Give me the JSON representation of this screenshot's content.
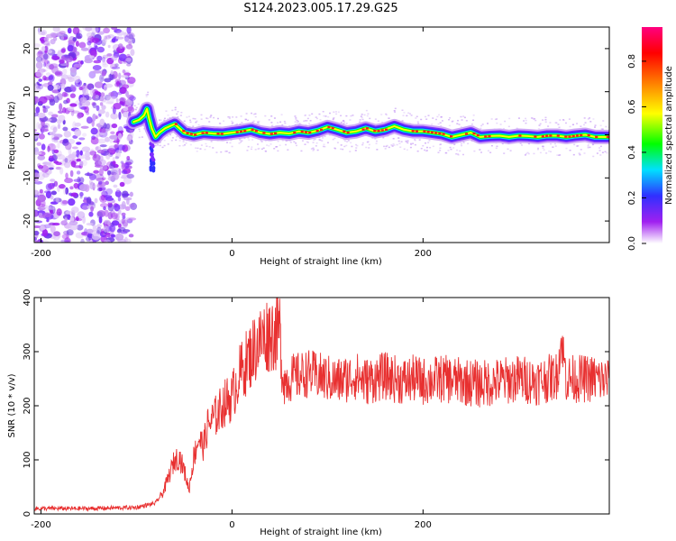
{
  "figure": {
    "title": "S124.2023.005.17.29.G25"
  },
  "chart_data": [
    {
      "type": "heatmap",
      "xlabel": "Height of straight line (km)",
      "ylabel": "Frequency (Hz)",
      "xlim": [
        -207,
        395
      ],
      "ylim": [
        -25,
        25
      ],
      "x_ticks": [
        -200,
        0,
        200
      ],
      "y_ticks": [
        -20,
        -10,
        0,
        10,
        20
      ],
      "noise_region_x": [
        -207,
        -103
      ],
      "ridge": {
        "x": [
          -103,
          -97,
          -92,
          -89,
          -87,
          -84,
          -80,
          -76,
          -70,
          -60,
          -50,
          -40,
          -30,
          -20,
          -10,
          0,
          10,
          20,
          30,
          40,
          50,
          60,
          70,
          80,
          90,
          100,
          110,
          120,
          130,
          140,
          150,
          160,
          170,
          180,
          190,
          200,
          210,
          220,
          230,
          240,
          250,
          260,
          270,
          280,
          290,
          300,
          310,
          320,
          330,
          340,
          350,
          360,
          370,
          380,
          395
        ],
        "frequency": [
          3,
          3.5,
          4.5,
          6,
          4,
          1.5,
          -0.5,
          0.5,
          1.5,
          2.5,
          0.5,
          0,
          0.5,
          0.3,
          0.2,
          0.5,
          0.8,
          1.2,
          0.5,
          0.2,
          0.5,
          0.3,
          0.8,
          0.5,
          1,
          1.8,
          1.2,
          0.5,
          0.8,
          1.5,
          0.8,
          1.2,
          2,
          1.2,
          0.8,
          0.8,
          0.5,
          0.2,
          -0.5,
          0,
          0.5,
          -0.5,
          -0.3,
          -0.2,
          -0.5,
          -0.2,
          -0.3,
          -0.5,
          -0.2,
          -0.2,
          -0.5,
          -0.2,
          0,
          -0.5,
          -0.5
        ]
      },
      "colorbar": {
        "label": "Normalized spectral amplitude",
        "range": [
          0,
          0.95
        ],
        "ticks": [
          0.0,
          0.2,
          0.4,
          0.6,
          0.8
        ],
        "tick_labels": [
          "0.0",
          "0.2",
          "0.4",
          "0.6",
          "0.8"
        ],
        "colormap": [
          "#ffffff",
          "#a020f0",
          "#3030ff",
          "#00e0ff",
          "#00ff00",
          "#ffff00",
          "#ff8000",
          "#ff0000",
          "#ff0080"
        ]
      },
      "grid": false
    },
    {
      "type": "line",
      "xlabel": "Height of straight line (km)",
      "ylabel": "SNR (10 * v/v)",
      "xlim": [
        -207,
        395
      ],
      "ylim": [
        0,
        400
      ],
      "x_ticks": [
        -200,
        0,
        200
      ],
      "y_ticks": [
        0,
        100,
        200,
        300,
        400
      ],
      "color": "#e83030",
      "series": [
        {
          "x": [
            -207,
            -150,
            -100,
            -80,
            -72,
            -65,
            -60,
            -55,
            -50,
            -45,
            -40,
            -35,
            -30,
            -25,
            -20,
            -15,
            -10,
            -5,
            0,
            5,
            10,
            15,
            20,
            25,
            30,
            35,
            40,
            45,
            50,
            52,
            55,
            60,
            70,
            80,
            90,
            100,
            110,
            120,
            130,
            140,
            150,
            160,
            170,
            180,
            190,
            200,
            220,
            240,
            260,
            280,
            300,
            320,
            340,
            345,
            350,
            360,
            380,
            395
          ],
          "values": [
            10,
            10,
            12,
            20,
            40,
            75,
            100,
            105,
            80,
            45,
            105,
            140,
            125,
            165,
            175,
            185,
            200,
            210,
            215,
            245,
            265,
            280,
            295,
            310,
            320,
            330,
            335,
            335,
            340,
            270,
            245,
            250,
            255,
            260,
            255,
            250,
            245,
            250,
            255,
            245,
            250,
            255,
            250,
            245,
            250,
            245,
            250,
            245,
            240,
            245,
            250,
            245,
            255,
            320,
            250,
            250,
            250,
            245
          ]
        }
      ],
      "grid": false
    }
  ]
}
